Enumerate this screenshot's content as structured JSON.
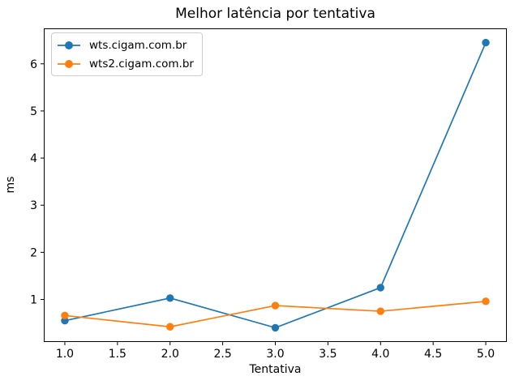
{
  "chart_data": {
    "type": "line",
    "title": "Melhor latência por tentativa",
    "xlabel": "Tentativa",
    "ylabel": "ms",
    "x": [
      1,
      2,
      3,
      4,
      5
    ],
    "series": [
      {
        "name": "wts.cigam.com.br",
        "color": "#1f77b4",
        "values": [
          0.55,
          1.03,
          0.4,
          1.25,
          6.45
        ]
      },
      {
        "name": "wts2.cigam.com.br",
        "color": "#ff7f0e",
        "values": [
          0.66,
          0.42,
          0.87,
          0.75,
          0.96
        ]
      }
    ],
    "xlim": [
      0.8,
      5.2
    ],
    "ylim": [
      0.0975,
      6.7525
    ],
    "xticks": {
      "values": [
        1.0,
        1.5,
        2.0,
        2.5,
        3.0,
        3.5,
        4.0,
        4.5,
        5.0
      ],
      "labels": [
        "1.0",
        "1.5",
        "2.0",
        "2.5",
        "3.0",
        "3.5",
        "4.0",
        "4.5",
        "5.0"
      ]
    },
    "yticks": {
      "values": [
        1,
        2,
        3,
        4,
        5,
        6
      ],
      "labels": [
        "1",
        "2",
        "3",
        "4",
        "5",
        "6"
      ]
    },
    "grid": false,
    "legend_position": "upper left",
    "marker": "circle",
    "axis_color": "#000000",
    "legend_border_color": "#cccccc",
    "background": "#ffffff"
  }
}
